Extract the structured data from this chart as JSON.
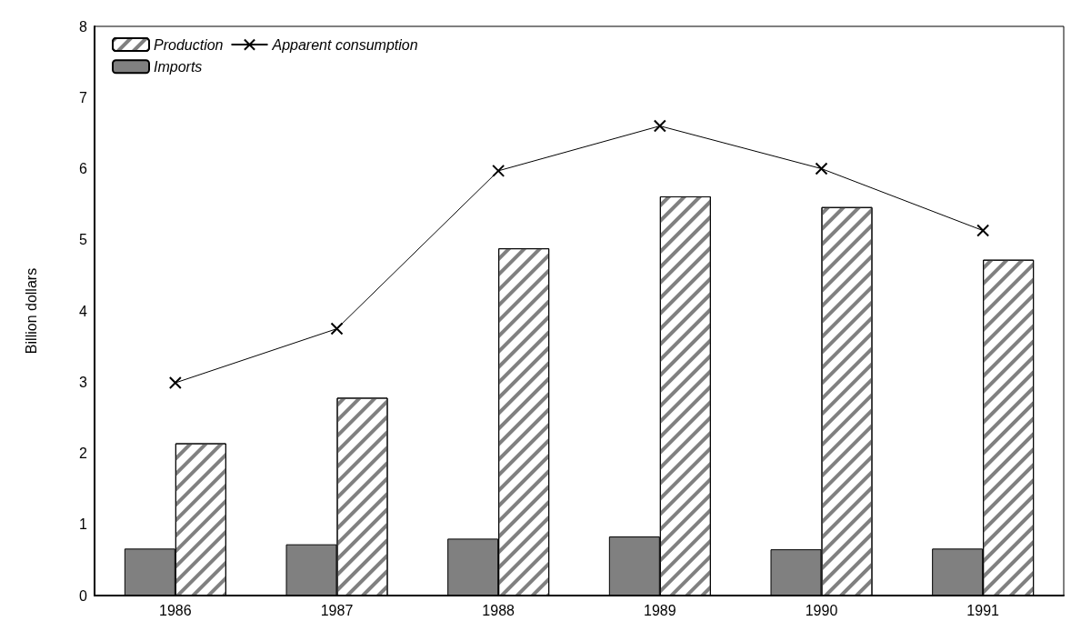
{
  "chart_data": {
    "type": "bar",
    "ylabel": "Billion dollars",
    "categories": [
      "1986",
      "1987",
      "1988",
      "1989",
      "1990",
      "1991"
    ],
    "series": [
      {
        "name": "Imports",
        "color": "#808080",
        "values": [
          0.66,
          0.72,
          0.8,
          0.83,
          0.65,
          0.66
        ]
      },
      {
        "name": "Production",
        "color": "#ffffff",
        "values": [
          2.14,
          2.78,
          4.88,
          5.61,
          5.46,
          4.72
        ]
      },
      {
        "name": "Apparent consumption",
        "type": "line",
        "color": "#000000",
        "marker": "cross",
        "values": [
          2.99,
          3.75,
          5.97,
          6.6,
          6.0,
          5.13
        ]
      }
    ],
    "ylim": [
      0,
      8
    ],
    "yticks": [
      0,
      1,
      2,
      3,
      4,
      5,
      6,
      7,
      8
    ],
    "grid": false,
    "legend": "top left"
  }
}
